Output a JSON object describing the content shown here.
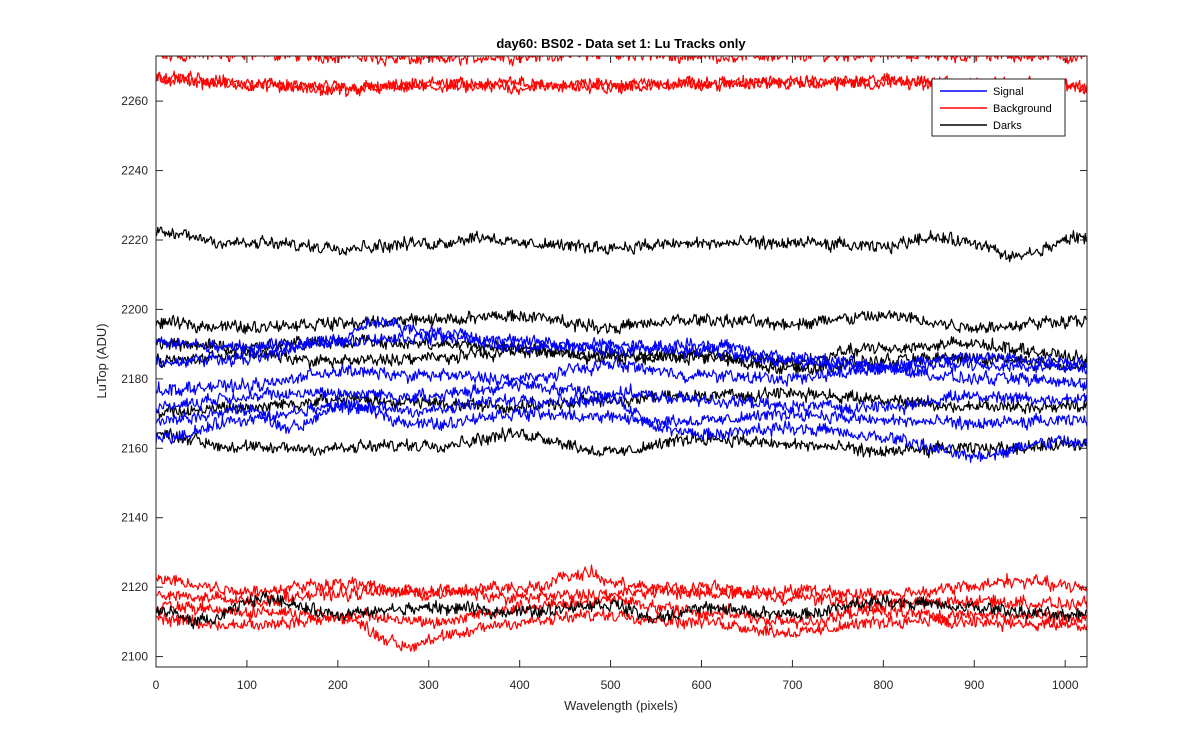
{
  "chart_data": {
    "type": "line",
    "title": "day60: BS02 - Data set 1: Lu Tracks only",
    "xlabel": "Wavelength (pixels)",
    "ylabel": "LuTop (ADU)",
    "xlim": [
      0,
      1024
    ],
    "ylim": [
      2097,
      2273
    ],
    "x_ticks": [
      0,
      100,
      200,
      300,
      400,
      500,
      600,
      700,
      800,
      900,
      1000
    ],
    "y_ticks": [
      2100,
      2120,
      2140,
      2160,
      2180,
      2200,
      2220,
      2240,
      2260
    ],
    "grid": false,
    "legend_position": "top-right",
    "legend": [
      {
        "label": "Signal",
        "color": "#0000ff"
      },
      {
        "label": "Background",
        "color": "#ff0000"
      },
      {
        "label": "Darks",
        "color": "#000000"
      }
    ],
    "colors": {
      "Signal": "#0000ff",
      "Background": "#ff0000",
      "Darks": "#000000"
    },
    "series": [
      {
        "group": "Background",
        "values": [
          [
            0,
            2273
          ],
          [
            100,
            2273.5
          ],
          [
            200,
            2273
          ],
          [
            300,
            2272
          ],
          [
            400,
            2273
          ],
          [
            500,
            2273.5
          ],
          [
            600,
            2273
          ],
          [
            700,
            2273
          ],
          [
            800,
            2273.5
          ],
          [
            900,
            2273
          ],
          [
            1024,
            2273
          ]
        ]
      },
      {
        "group": "Background",
        "values": [
          [
            0,
            2266
          ],
          [
            100,
            2265
          ],
          [
            200,
            2264
          ],
          [
            300,
            2264
          ],
          [
            400,
            2264
          ],
          [
            500,
            2265
          ],
          [
            600,
            2265
          ],
          [
            700,
            2265
          ],
          [
            800,
            2266
          ],
          [
            900,
            2265
          ],
          [
            1000,
            2264
          ],
          [
            1024,
            2264
          ]
        ]
      },
      {
        "group": "Background",
        "values": [
          [
            0,
            2267
          ],
          [
            100,
            2265
          ],
          [
            200,
            2263
          ],
          [
            300,
            2265
          ],
          [
            400,
            2265
          ],
          [
            500,
            2264
          ],
          [
            600,
            2265
          ],
          [
            700,
            2266
          ],
          [
            800,
            2265
          ],
          [
            900,
            2265
          ],
          [
            1000,
            2265
          ],
          [
            1024,
            2263
          ]
        ]
      },
      {
        "group": "Darks",
        "values": [
          [
            0,
            2222
          ],
          [
            100,
            2219
          ],
          [
            200,
            2218
          ],
          [
            300,
            2219
          ],
          [
            360,
            2221
          ],
          [
            400,
            2219
          ],
          [
            500,
            2218
          ],
          [
            600,
            2219
          ],
          [
            700,
            2219
          ],
          [
            800,
            2218
          ],
          [
            850,
            2221
          ],
          [
            900,
            2219
          ],
          [
            940,
            2215
          ],
          [
            1024,
            2221
          ]
        ]
      },
      {
        "group": "Darks",
        "values": [
          [
            0,
            2196
          ],
          [
            100,
            2195
          ],
          [
            200,
            2196
          ],
          [
            300,
            2197
          ],
          [
            400,
            2198
          ],
          [
            500,
            2195
          ],
          [
            600,
            2197
          ],
          [
            700,
            2196
          ],
          [
            800,
            2198
          ],
          [
            900,
            2195
          ],
          [
            1024,
            2197
          ]
        ]
      },
      {
        "group": "Darks",
        "values": [
          [
            0,
            2190
          ],
          [
            100,
            2189
          ],
          [
            200,
            2191
          ],
          [
            300,
            2190
          ],
          [
            400,
            2189
          ],
          [
            500,
            2186
          ],
          [
            600,
            2187
          ],
          [
            700,
            2185
          ],
          [
            800,
            2189
          ],
          [
            900,
            2190
          ],
          [
            1024,
            2186
          ]
        ]
      },
      {
        "group": "Darks",
        "values": [
          [
            0,
            2185
          ],
          [
            100,
            2187
          ],
          [
            200,
            2185
          ],
          [
            300,
            2186
          ],
          [
            400,
            2188
          ],
          [
            500,
            2187
          ],
          [
            600,
            2186
          ],
          [
            700,
            2183
          ],
          [
            800,
            2185
          ],
          [
            900,
            2186
          ],
          [
            1024,
            2184
          ]
        ]
      },
      {
        "group": "Darks",
        "values": [
          [
            0,
            2170
          ],
          [
            100,
            2172
          ],
          [
            200,
            2174
          ],
          [
            300,
            2173
          ],
          [
            400,
            2172
          ],
          [
            500,
            2174
          ],
          [
            600,
            2175
          ],
          [
            700,
            2176
          ],
          [
            800,
            2174
          ],
          [
            900,
            2172
          ],
          [
            1024,
            2172
          ]
        ]
      },
      {
        "group": "Darks",
        "values": [
          [
            0,
            2164
          ],
          [
            100,
            2160
          ],
          [
            200,
            2160
          ],
          [
            300,
            2161
          ],
          [
            400,
            2164
          ],
          [
            500,
            2159
          ],
          [
            600,
            2163
          ],
          [
            700,
            2161
          ],
          [
            800,
            2159
          ],
          [
            900,
            2160
          ],
          [
            1024,
            2161
          ]
        ]
      },
      {
        "group": "Signal",
        "values": [
          [
            0,
            2190
          ],
          [
            100,
            2189
          ],
          [
            200,
            2191
          ],
          [
            300,
            2192
          ],
          [
            400,
            2191
          ],
          [
            500,
            2188
          ],
          [
            600,
            2190
          ],
          [
            700,
            2186
          ],
          [
            800,
            2184
          ],
          [
            900,
            2186
          ],
          [
            1024,
            2185
          ]
        ]
      },
      {
        "group": "Signal",
        "values": [
          [
            0,
            2185
          ],
          [
            100,
            2186
          ],
          [
            200,
            2191
          ],
          [
            240,
            2196
          ],
          [
            300,
            2194
          ],
          [
            400,
            2189
          ],
          [
            500,
            2190
          ],
          [
            600,
            2188
          ],
          [
            700,
            2185
          ],
          [
            800,
            2183
          ],
          [
            900,
            2184
          ],
          [
            1024,
            2183
          ]
        ]
      },
      {
        "group": "Signal",
        "values": [
          [
            0,
            2177
          ],
          [
            100,
            2178
          ],
          [
            200,
            2182
          ],
          [
            300,
            2181
          ],
          [
            400,
            2180
          ],
          [
            500,
            2184
          ],
          [
            600,
            2181
          ],
          [
            700,
            2180
          ],
          [
            800,
            2183
          ],
          [
            900,
            2180
          ],
          [
            1024,
            2179
          ]
        ]
      },
      {
        "group": "Signal",
        "values": [
          [
            0,
            2172
          ],
          [
            100,
            2175
          ],
          [
            200,
            2176
          ],
          [
            300,
            2175
          ],
          [
            400,
            2178
          ],
          [
            500,
            2176
          ],
          [
            600,
            2174
          ],
          [
            700,
            2172
          ],
          [
            800,
            2172
          ],
          [
            900,
            2175
          ],
          [
            1024,
            2174
          ]
        ]
      },
      {
        "group": "Signal",
        "values": [
          [
            0,
            2168
          ],
          [
            100,
            2171
          ],
          [
            150,
            2166
          ],
          [
            200,
            2172
          ],
          [
            300,
            2171
          ],
          [
            400,
            2174
          ],
          [
            500,
            2174
          ],
          [
            550,
            2168
          ],
          [
            600,
            2168
          ],
          [
            700,
            2170
          ],
          [
            800,
            2168
          ],
          [
            900,
            2167
          ],
          [
            1024,
            2168
          ]
        ]
      },
      {
        "group": "Signal",
        "values": [
          [
            0,
            2163
          ],
          [
            100,
            2168
          ],
          [
            200,
            2172
          ],
          [
            300,
            2167
          ],
          [
            400,
            2170
          ],
          [
            500,
            2169
          ],
          [
            600,
            2164
          ],
          [
            700,
            2166
          ],
          [
            800,
            2163
          ],
          [
            900,
            2158
          ],
          [
            1000,
            2162
          ],
          [
            1024,
            2161
          ]
        ]
      },
      {
        "group": "Background",
        "values": [
          [
            0,
            2122
          ],
          [
            100,
            2119
          ],
          [
            200,
            2121
          ],
          [
            300,
            2118
          ],
          [
            400,
            2120
          ],
          [
            480,
            2124
          ],
          [
            500,
            2121
          ],
          [
            600,
            2118
          ],
          [
            700,
            2119
          ],
          [
            800,
            2118
          ],
          [
            900,
            2120
          ],
          [
            930,
            2122
          ],
          [
            1024,
            2120
          ]
        ]
      },
      {
        "group": "Background",
        "values": [
          [
            0,
            2118
          ],
          [
            100,
            2116
          ],
          [
            200,
            2118
          ],
          [
            300,
            2119
          ],
          [
            400,
            2117
          ],
          [
            500,
            2118
          ],
          [
            600,
            2120
          ],
          [
            700,
            2117
          ],
          [
            800,
            2115
          ],
          [
            900,
            2116
          ],
          [
            1024,
            2115
          ]
        ]
      },
      {
        "group": "Background",
        "values": [
          [
            0,
            2114
          ],
          [
            100,
            2113
          ],
          [
            200,
            2112
          ],
          [
            300,
            2110
          ],
          [
            400,
            2114
          ],
          [
            500,
            2116
          ],
          [
            600,
            2113
          ],
          [
            700,
            2110
          ],
          [
            800,
            2113
          ],
          [
            900,
            2110
          ],
          [
            1024,
            2109
          ]
        ]
      },
      {
        "group": "Background",
        "values": [
          [
            0,
            2111
          ],
          [
            100,
            2109
          ],
          [
            200,
            2111
          ],
          [
            280,
            2103
          ],
          [
            300,
            2105
          ],
          [
            400,
            2110
          ],
          [
            500,
            2112
          ],
          [
            600,
            2110
          ],
          [
            700,
            2107
          ],
          [
            800,
            2110
          ],
          [
            900,
            2112
          ],
          [
            1024,
            2111
          ]
        ]
      },
      {
        "group": "Darks",
        "values": [
          [
            0,
            2113
          ],
          [
            50,
            2110
          ],
          [
            120,
            2117
          ],
          [
            200,
            2112
          ],
          [
            300,
            2114
          ],
          [
            400,
            2113
          ],
          [
            500,
            2115
          ],
          [
            550,
            2111
          ],
          [
            600,
            2114
          ],
          [
            700,
            2112
          ],
          [
            800,
            2116
          ],
          [
            900,
            2114
          ],
          [
            1000,
            2112
          ],
          [
            1024,
            2113
          ]
        ]
      }
    ]
  }
}
